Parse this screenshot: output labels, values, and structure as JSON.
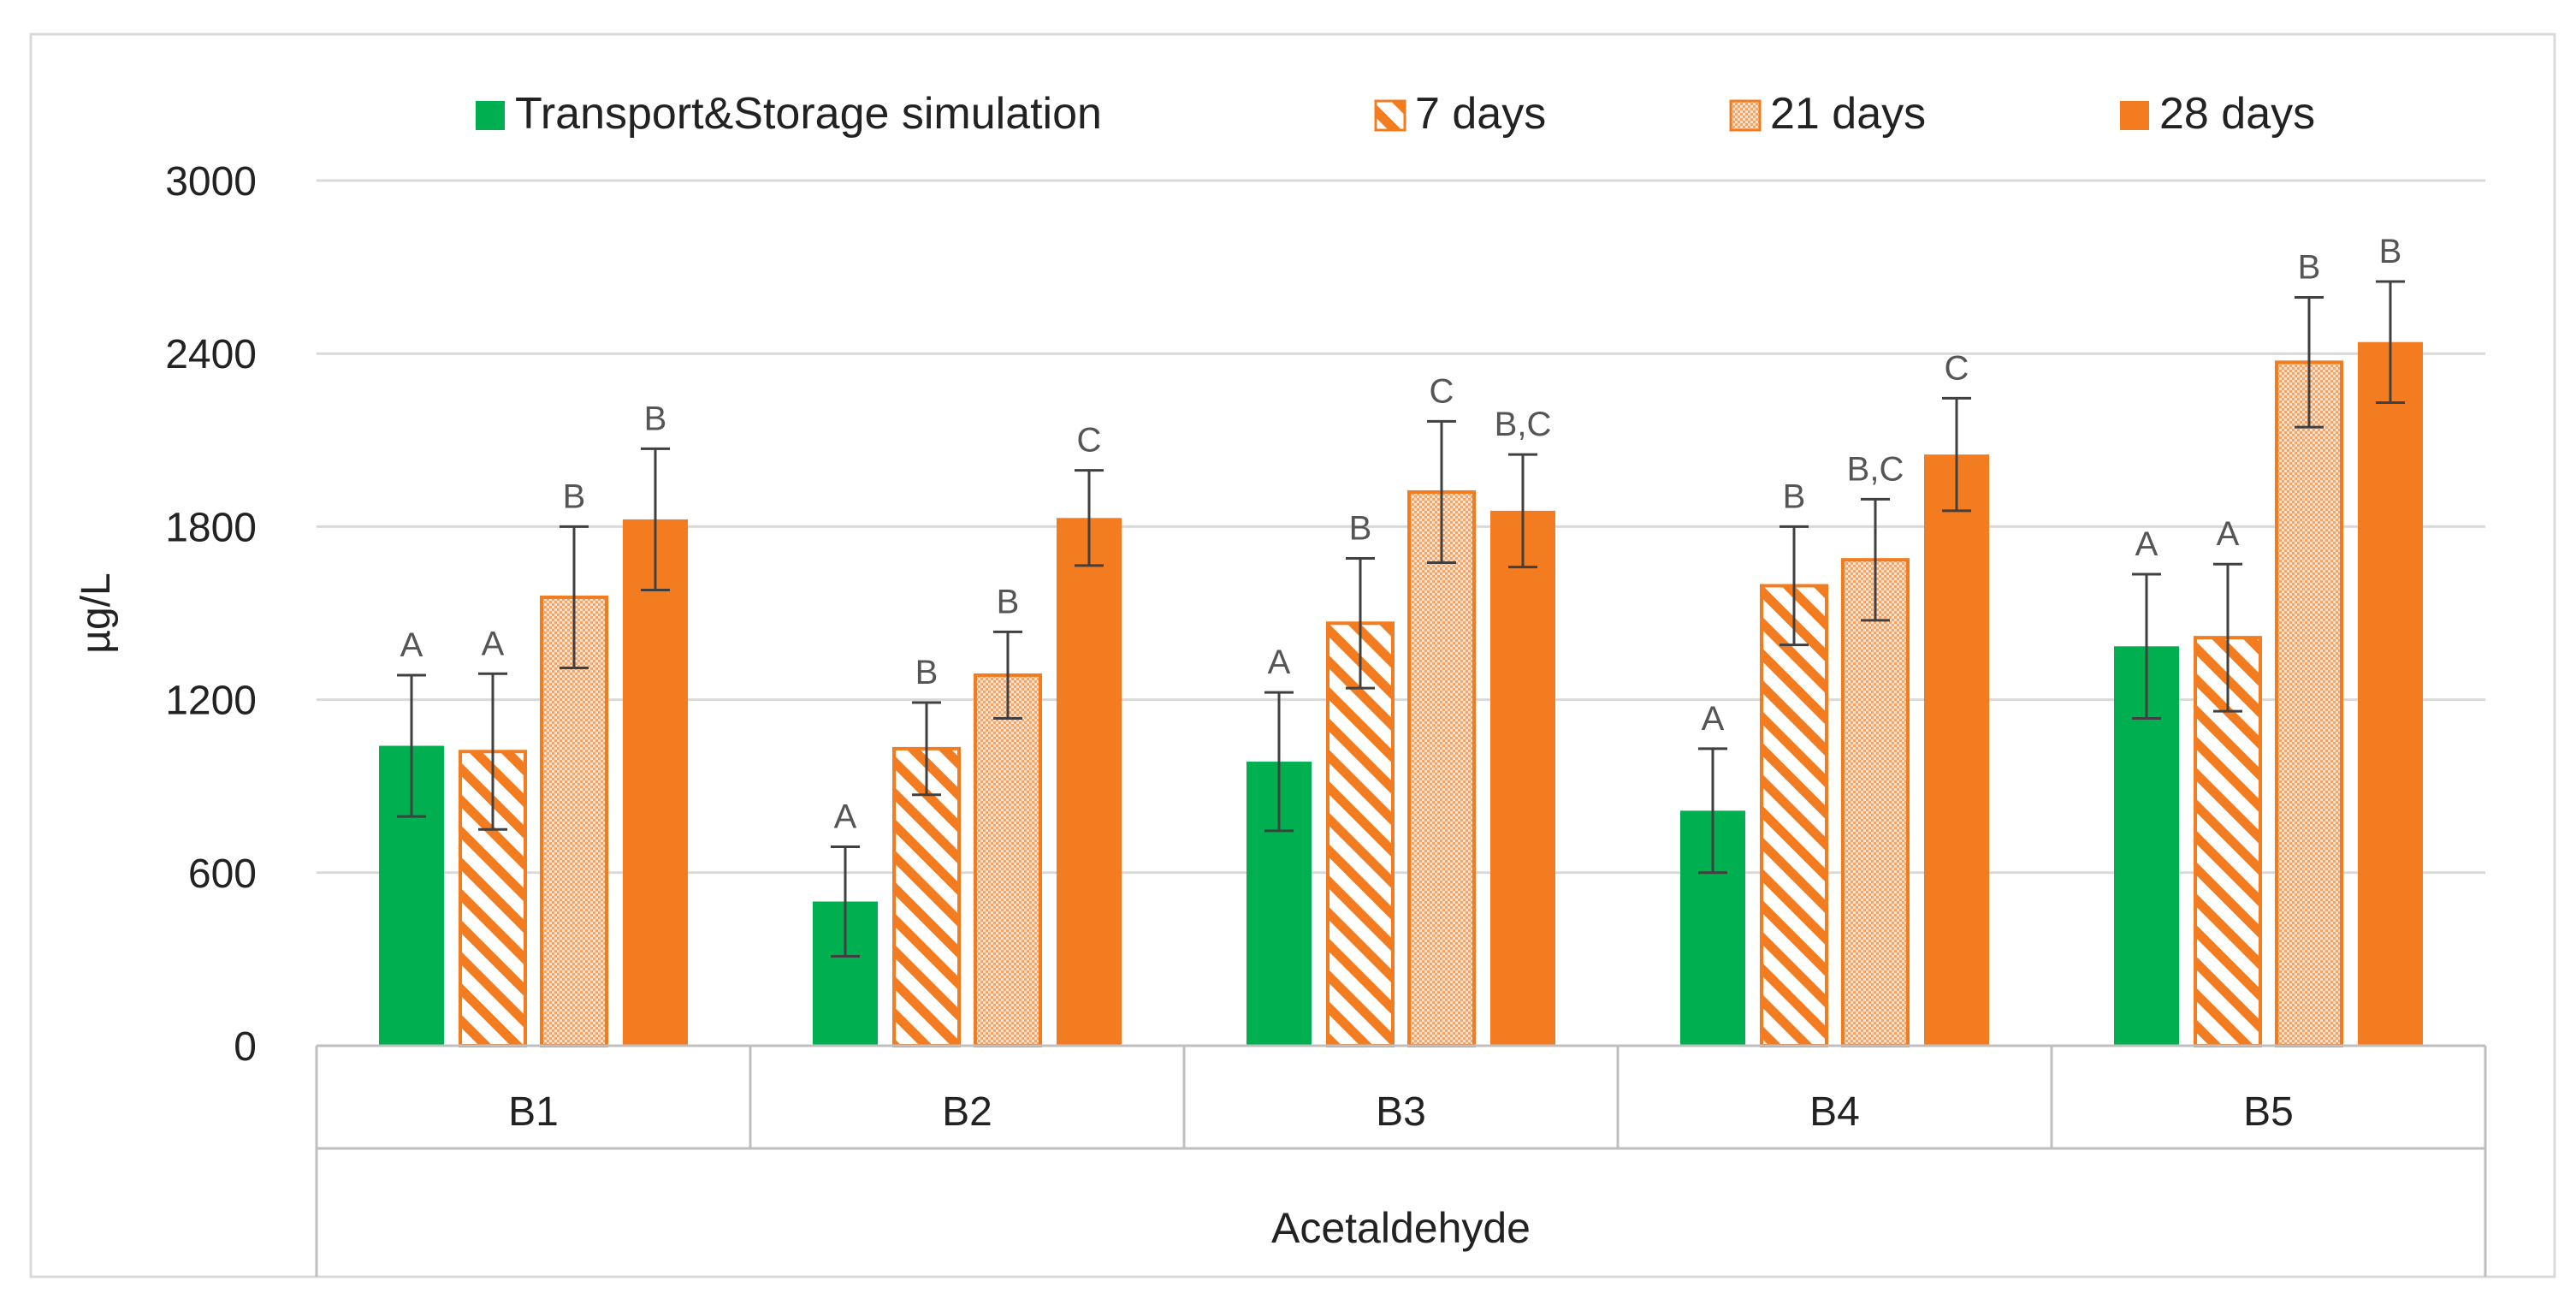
{
  "chart_data": {
    "type": "bar",
    "title": "",
    "xlabel": "Acetaldehyde",
    "ylabel": "µg/L",
    "ylim": [
      0,
      3000
    ],
    "yticks": [
      0,
      600,
      1200,
      1800,
      2400,
      3000
    ],
    "grid": true,
    "legend_position": "top",
    "categories": [
      "B1",
      "B2",
      "B3",
      "B4",
      "B5"
    ],
    "series": [
      {
        "name": "Transport&Storage simulation",
        "fill": "solid",
        "color": "#00b050",
        "values": [
          1040,
          500,
          985,
          815,
          1385
        ],
        "errors": [
          245,
          190,
          240,
          215,
          250
        ],
        "letters": [
          "A",
          "A",
          "A",
          "A",
          "A"
        ]
      },
      {
        "name": "7 days",
        "fill": "hatch",
        "color": "#f47c20",
        "values": [
          1020,
          1030,
          1465,
          1595,
          1415
        ],
        "errors": [
          270,
          160,
          225,
          205,
          255
        ],
        "letters": [
          "A",
          "B",
          "B",
          "B",
          "A"
        ]
      },
      {
        "name": "21 days",
        "fill": "dots",
        "color": "#f47c20",
        "values": [
          1555,
          1285,
          1920,
          1685,
          2370
        ],
        "errors": [
          245,
          150,
          245,
          210,
          225
        ],
        "letters": [
          "B",
          "B",
          "C",
          "B,C",
          "B"
        ]
      },
      {
        "name": "28 days",
        "fill": "solid",
        "color": "#f47c20",
        "values": [
          1825,
          1830,
          1855,
          2050,
          2440
        ],
        "errors": [
          245,
          165,
          195,
          195,
          210
        ],
        "letters": [
          "B",
          "C",
          "B,C",
          "C",
          "B"
        ]
      }
    ]
  }
}
